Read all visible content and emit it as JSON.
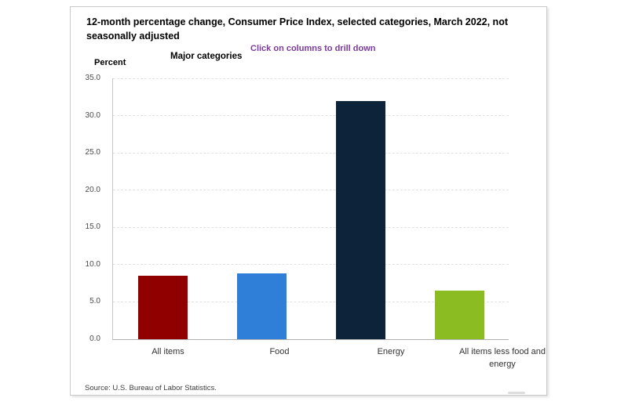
{
  "panel": {
    "source_note": "Source: U.S. Bureau of Labor Statistics."
  },
  "colors": {
    "subtitle_purple": "#7c3a9d",
    "axis_line": "#c6c6c6",
    "baseline": "#aeaeae",
    "gridline": "#e2e2e2"
  },
  "chart_data": {
    "type": "bar",
    "title": "12-month percentage change, Consumer Price Index, selected categories, March 2022, not seasonally adjusted",
    "subtitle": "Click on columns to drill down",
    "group_label": "Major categories",
    "ylabel": "Percent",
    "categories": [
      "All items",
      "Food",
      "Energy",
      "All items less food and energy"
    ],
    "values": [
      8.5,
      8.8,
      32.0,
      6.5
    ],
    "bar_colors": [
      "#910000",
      "#2f7ed8",
      "#0d233a",
      "#8bbc21"
    ],
    "ylim": [
      0,
      35
    ],
    "ytick_step": 5,
    "ytick_labels": [
      "0.0",
      "5.0",
      "10.0",
      "15.0",
      "20.0",
      "25.0",
      "30.0",
      "35.0"
    ],
    "grid": "dashed-horizontal",
    "legend": "none"
  }
}
